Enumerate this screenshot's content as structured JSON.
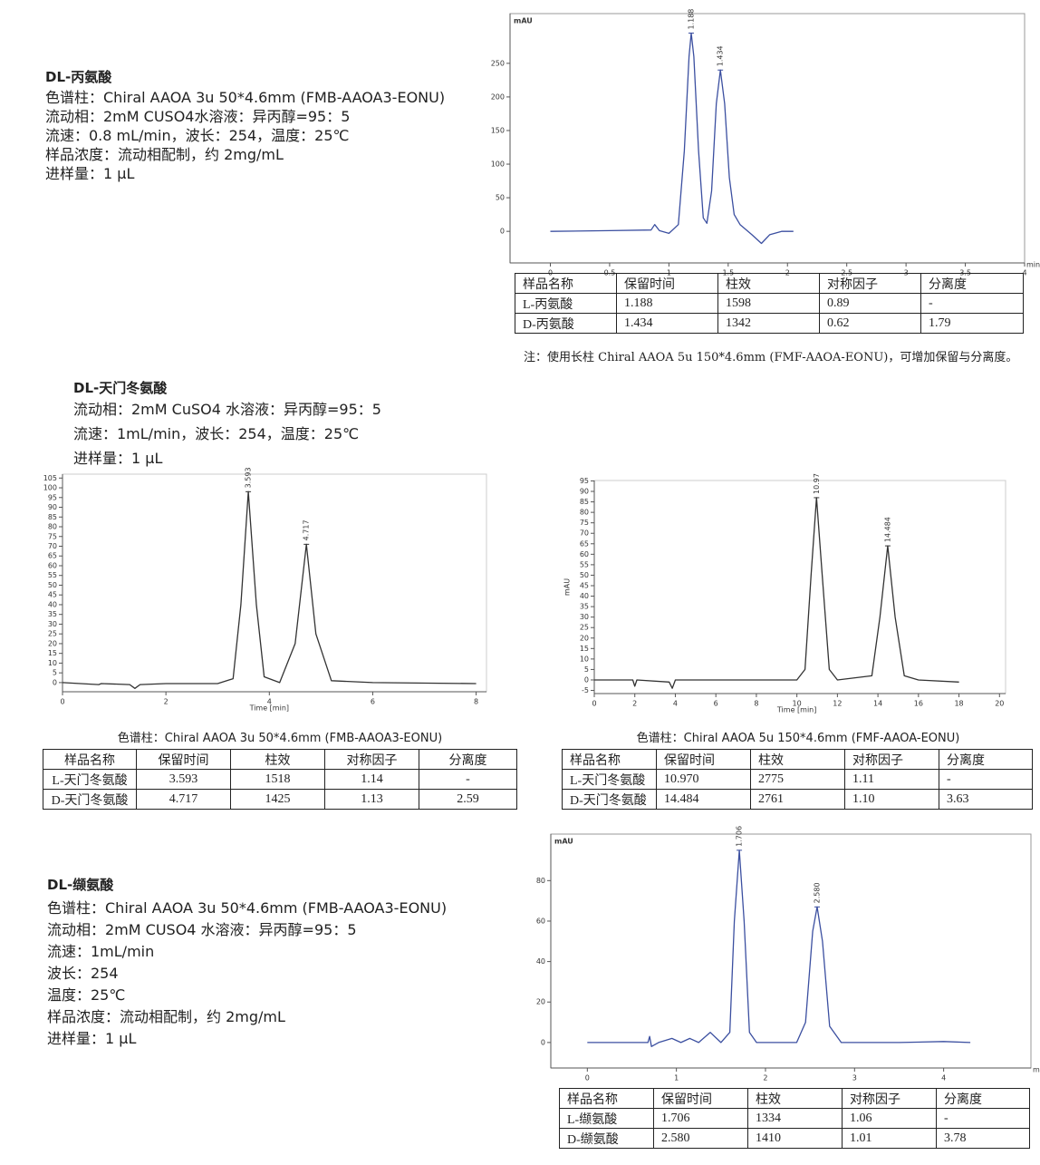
{
  "chart_data": [
    {
      "type": "line",
      "ylabel": "mAU",
      "xlabel": "min",
      "color": "#3b4fa0",
      "xlim": [
        -0.34,
        4
      ],
      "ylim": [
        -47,
        324
      ],
      "xticks": [
        0,
        0.5,
        1,
        1.5,
        2,
        2.5,
        3,
        3.5,
        4
      ],
      "yticks": [
        0,
        50,
        100,
        150,
        200,
        250
      ],
      "x": [
        0,
        0.5,
        0.85,
        0.88,
        0.92,
        1.0,
        1.08,
        1.13,
        1.17,
        1.188,
        1.21,
        1.25,
        1.29,
        1.32,
        1.36,
        1.4,
        1.434,
        1.47,
        1.51,
        1.55,
        1.6,
        1.7,
        1.78,
        1.85,
        1.95,
        2.05
      ],
      "values": [
        0,
        1,
        2,
        10,
        1,
        -3,
        10,
        120,
        260,
        295,
        260,
        120,
        20,
        12,
        60,
        190,
        240,
        190,
        80,
        25,
        10,
        -5,
        -18,
        -5,
        0,
        0
      ],
      "peaks": [
        {
          "label": "1.188",
          "x": 1.188,
          "y": 295
        },
        {
          "label": "1.434",
          "x": 1.434,
          "y": 240
        }
      ]
    },
    {
      "type": "line",
      "xlabel": "Time [min]",
      "color": "#333333",
      "xlim": [
        0,
        8.2
      ],
      "ylim": [
        -4.7,
        107
      ],
      "xticks": [
        0,
        2,
        4,
        6,
        8
      ],
      "yticks": [
        0,
        5,
        10,
        15,
        20,
        25,
        30,
        35,
        40,
        45,
        50,
        55,
        60,
        65,
        70,
        75,
        80,
        85,
        90,
        95,
        100,
        105
      ],
      "x": [
        0,
        0.7,
        0.75,
        1.3,
        1.4,
        1.5,
        2,
        3,
        3.3,
        3.45,
        3.593,
        3.75,
        3.9,
        4.2,
        4.5,
        4.717,
        4.9,
        5.2,
        6,
        8
      ],
      "values": [
        0,
        -1,
        -0.5,
        -1,
        -3,
        -1,
        -0.5,
        -0.5,
        2,
        40,
        98,
        40,
        3,
        0,
        20,
        71,
        25,
        1,
        0,
        -0.5
      ],
      "peaks": [
        {
          "label": "3.593",
          "x": 3.593,
          "y": 98
        },
        {
          "label": "4.717",
          "x": 4.717,
          "y": 71
        }
      ]
    },
    {
      "type": "line",
      "ylabel": "mAU",
      "xlabel": "Time [min]",
      "color": "#333333",
      "xlim": [
        0,
        20.3
      ],
      "ylim": [
        -6.5,
        95.2
      ],
      "xticks": [
        0,
        2,
        4,
        6,
        8,
        10,
        12,
        14,
        16,
        18,
        20
      ],
      "yticks": [
        -5,
        0,
        5,
        10,
        15,
        20,
        25,
        30,
        35,
        40,
        45,
        50,
        55,
        60,
        65,
        70,
        75,
        80,
        85,
        90,
        95
      ],
      "x": [
        0,
        1.9,
        2,
        2.1,
        3.7,
        3.85,
        4,
        10,
        10.4,
        10.7,
        10.97,
        11.25,
        11.6,
        12,
        13.7,
        14.1,
        14.484,
        14.85,
        15.3,
        16,
        18
      ],
      "values": [
        0,
        0,
        -3,
        0,
        -1,
        -4,
        0,
        0,
        5,
        50,
        87,
        50,
        5,
        0,
        2,
        30,
        64,
        30,
        2,
        0,
        -1
      ],
      "peaks": [
        {
          "label": "10.97",
          "x": 10.97,
          "y": 87
        },
        {
          "label": "14.484",
          "x": 14.484,
          "y": 64
        }
      ]
    },
    {
      "type": "line",
      "ylabel": "mAU",
      "xlabel": "min",
      "color": "#3b4fa0",
      "xlim": [
        -0.41,
        4.98
      ],
      "ylim": [
        -12.6,
        103
      ],
      "xticks": [
        0,
        1,
        2,
        3,
        4
      ],
      "yticks": [
        0,
        20,
        40,
        60,
        80
      ],
      "x": [
        0,
        0.68,
        0.7,
        0.72,
        0.8,
        0.95,
        1.05,
        1.15,
        1.25,
        1.38,
        1.5,
        1.6,
        1.65,
        1.706,
        1.76,
        1.82,
        1.9,
        2.35,
        2.45,
        2.53,
        2.58,
        2.64,
        2.72,
        2.85,
        3.5,
        4,
        4.3
      ],
      "values": [
        0,
        0,
        3,
        -2,
        0,
        2,
        0,
        2,
        0,
        5,
        0,
        5,
        60,
        95,
        60,
        5,
        0,
        0,
        10,
        55,
        67,
        50,
        8,
        0,
        0,
        0.5,
        0
      ],
      "peaks": [
        {
          "label": "1.706",
          "x": 1.706,
          "y": 95
        },
        {
          "label": "2.580",
          "x": 2.58,
          "y": 67
        }
      ]
    }
  ],
  "sections": [
    {
      "title": "DL-丙氨酸",
      "lines": [
        "色谱柱：Chiral AAOA 3u 50*4.6mm (FMB-AAOA3-EONU)",
        "流动相：2mM CUSO4水溶液：异丙醇=95：5",
        "流速：0.8 mL/min，波长：254，温度：25℃",
        "样品浓度：流动相配制，约 2mg/mL",
        "进样量：1 μL"
      ],
      "table": {
        "header": [
          "样品名称",
          "保留时间",
          "柱效",
          "对称因子",
          "分离度"
        ],
        "rows": [
          [
            "L-丙氨酸",
            "1.188",
            "1598",
            "0.89",
            "-"
          ],
          [
            "D-丙氨酸",
            "1.434",
            "1342",
            "0.62",
            "1.79"
          ]
        ]
      },
      "note": "注：使用长柱 Chiral AAOA 5u 150*4.6mm (FMF-AAOA-EONU)，可增加保留与分离度。"
    },
    {
      "title": "DL-天门冬氨酸",
      "lines": [
        "流动相：2mM CuSO4 水溶液：异丙醇=95：5",
        "流速：1mL/min，波长：254，温度：25℃",
        "进样量：1 μL"
      ],
      "tables": [
        {
          "caption": "色谱柱：Chiral AAOA 3u 50*4.6mm (FMB-AAOA3-EONU)",
          "header": [
            "样品名称",
            "保留时间",
            "柱效",
            "对称因子",
            "分离度"
          ],
          "rows": [
            [
              "L-天门冬氨酸",
              "3.593",
              "1518",
              "1.14",
              "-"
            ],
            [
              "D-天门冬氨酸",
              "4.717",
              "1425",
              "1.13",
              "2.59"
            ]
          ]
        },
        {
          "caption": "色谱柱：Chiral AAOA 5u 150*4.6mm (FMF-AAOA-EONU)",
          "header": [
            "样品名称",
            "保留时间",
            "柱效",
            "对称因子",
            "分离度"
          ],
          "rows": [
            [
              "L-天门冬氨酸",
              "10.970",
              "2775",
              "1.11",
              "-"
            ],
            [
              "D-天门冬氨酸",
              "14.484",
              "2761",
              "1.10",
              "3.63"
            ]
          ]
        }
      ]
    },
    {
      "title": "DL-缬氨酸",
      "lines": [
        "色谱柱：Chiral AAOA 3u 50*4.6mm (FMB-AAOA3-EONU)",
        "流动相：2mM CUSO4 水溶液：异丙醇=95：5",
        "流速：1mL/min",
        "波长：254",
        "温度：25℃",
        "样品浓度：流动相配制，约 2mg/mL",
        "进样量：1 μL"
      ],
      "table": {
        "header": [
          "样品名称",
          "保留时间",
          "柱效",
          "对称因子",
          "分离度"
        ],
        "rows": [
          [
            "L-缬氨酸",
            "1.706",
            "1334",
            "1.06",
            "-"
          ],
          [
            "D-缬氨酸",
            "2.580",
            "1410",
            "1.01",
            "3.78"
          ]
        ]
      }
    }
  ]
}
